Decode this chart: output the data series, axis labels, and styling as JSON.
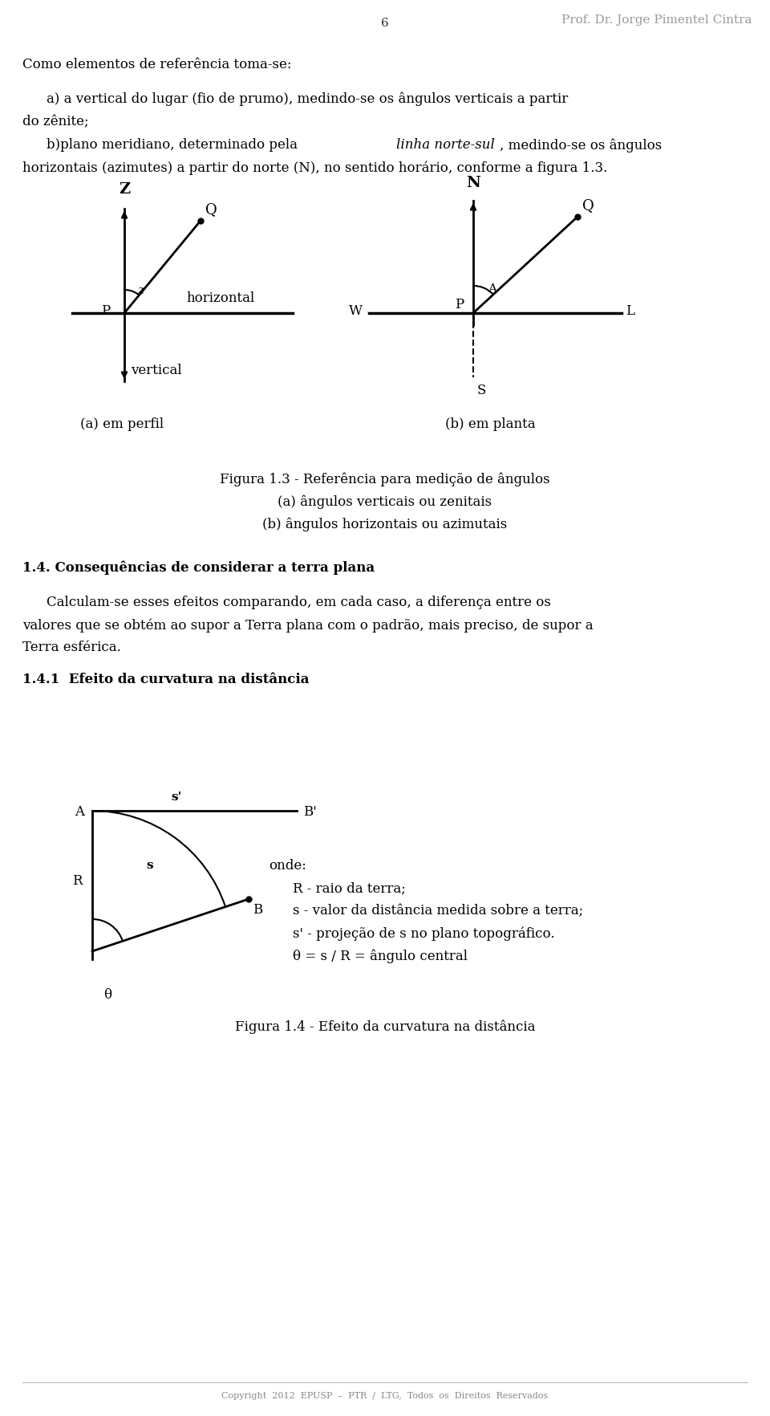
{
  "page_number": "6",
  "header_right": "Prof. Dr. Jorge Pimentel Cintra",
  "header_color": "#999999",
  "bg_color": "#ffffff",
  "text_color": "#000000",
  "para1": "Como elementos de referência toma-se:",
  "para2a_line1": "a) a vertical do lugar (fio de prumo), medindo-se os ângulos verticais a partir",
  "para2a_line2": "do zênite;",
  "para2b_plain1": "b)plano meridiano, determinado pela ",
  "para2b_italic": "linha norte-sul",
  "para2b_end1": ", medindo-se os ângulos",
  "para2b_line2": "horizontais (azimutes) a partir do norte (N), no sentido horário, conforme a figura 1.3.",
  "fig13_label_a": "(a) em perfil",
  "fig13_label_b": "(b) em planta",
  "fig13_caption1": "Figura 1.3 - Referência para medição de ângulos",
  "fig13_caption2": "(a) ângulos verticais ou zenitais",
  "fig13_caption3": "(b) ângulos horizontais ou azimutais",
  "sec14_title": "1.4. Consequências de considerar a terra plana",
  "sec14_body1": "Calculam-se esses efeitos comparando, em cada caso, a diferença entre os",
  "sec14_body2": "valores que se obtém ao supor a Terra plana com o padrão, mais preciso, de supor a",
  "sec14_body3": "Terra esférica.",
  "sec141_title": "1.4.1  Efeito da curvatura na distância",
  "fig14_onde": "onde:",
  "fig14_r": "R - raio da terra;",
  "fig14_s": "s - valor da distância medida sobre a terra;",
  "fig14_s2": "s' - projeção de s no plano topográfico.",
  "fig14_theta": "θ = s / R = ângulo central",
  "fig14_caption": "Figura 1.4 - Efeito da curvatura na distância",
  "footer": "Copyright  2012  EPUSP  –  PTR  /  LTG,  Todos  os  Direitos  Reservados"
}
